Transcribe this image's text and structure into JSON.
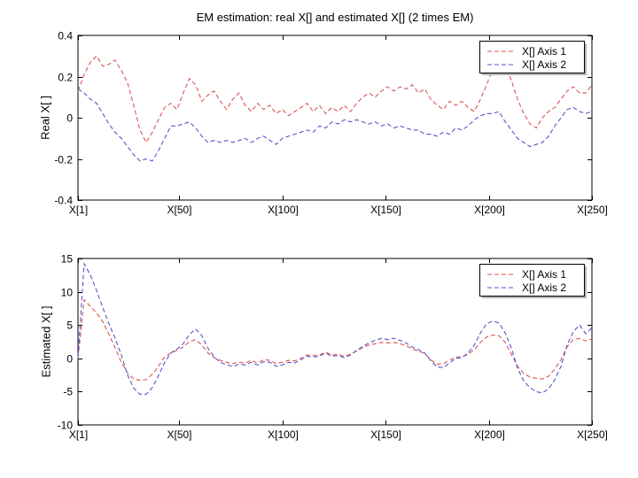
{
  "figure": {
    "title": "EM estimation: real X[] and estimated X[] (2 times EM)",
    "background": "#ffffff"
  },
  "chart_data": [
    {
      "type": "line",
      "title": "EM estimation: real X[] and estimated X[] (2 times EM)",
      "xlabel": "",
      "ylabel": "Real X[ ]",
      "grid": false,
      "xlim": [
        1,
        250
      ],
      "ylim": [
        -0.4,
        0.4
      ],
      "xticks": {
        "values": [
          1,
          50,
          100,
          150,
          200,
          250
        ],
        "labels": [
          "X[1]",
          "X[50]",
          "X[100]",
          "X[150]",
          "X[200]",
          "X[250]"
        ]
      },
      "yticks": {
        "values": [
          0.4,
          0.2,
          0,
          -0.2,
          -0.4
        ],
        "labels": [
          "0.4",
          "0.2",
          "0",
          "-0.2",
          "-0.4"
        ]
      },
      "legend": {
        "position": "top-right",
        "entries": [
          "X[] Axis 1",
          "X[] Axis 2"
        ]
      },
      "x": [
        1,
        4,
        7,
        10,
        13,
        16,
        19,
        22,
        25,
        28,
        31,
        34,
        37,
        40,
        43,
        46,
        49,
        52,
        55,
        58,
        61,
        64,
        67,
        70,
        73,
        76,
        79,
        82,
        85,
        88,
        91,
        94,
        97,
        100,
        103,
        106,
        109,
        112,
        115,
        118,
        121,
        124,
        127,
        130,
        133,
        136,
        139,
        142,
        145,
        148,
        151,
        154,
        157,
        160,
        163,
        166,
        169,
        172,
        175,
        178,
        181,
        184,
        187,
        190,
        193,
        196,
        199,
        202,
        205,
        208,
        211,
        214,
        217,
        220,
        223,
        226,
        229,
        232,
        235,
        238,
        241,
        244,
        247,
        250
      ],
      "series": [
        {
          "name": "X[] Axis 1",
          "color": "#dd5555",
          "style": "dashed",
          "values": [
            0.13,
            0.21,
            0.27,
            0.3,
            0.25,
            0.26,
            0.28,
            0.23,
            0.17,
            0.06,
            -0.06,
            -0.12,
            -0.07,
            -0.01,
            0.05,
            0.07,
            0.04,
            0.12,
            0.19,
            0.16,
            0.08,
            0.11,
            0.13,
            0.08,
            0.04,
            0.09,
            0.12,
            0.06,
            0.03,
            0.07,
            0.04,
            0.06,
            0.02,
            0.04,
            0.01,
            0.03,
            0.05,
            0.07,
            0.03,
            0.06,
            0.02,
            0.05,
            0.03,
            0.06,
            0.03,
            0.07,
            0.1,
            0.12,
            0.1,
            0.13,
            0.15,
            0.13,
            0.15,
            0.14,
            0.16,
            0.12,
            0.14,
            0.09,
            0.06,
            0.04,
            0.08,
            0.06,
            0.08,
            0.05,
            0.03,
            0.09,
            0.16,
            0.24,
            0.31,
            0.26,
            0.18,
            0.09,
            0.02,
            -0.03,
            -0.05,
            0.0,
            0.03,
            0.05,
            0.09,
            0.13,
            0.15,
            0.12,
            0.12,
            0.16
          ]
        },
        {
          "name": "X[] Axis 2",
          "color": "#5555cc",
          "style": "dashed",
          "values": [
            0.14,
            0.12,
            0.09,
            0.07,
            0.02,
            -0.03,
            -0.07,
            -0.1,
            -0.14,
            -0.18,
            -0.21,
            -0.2,
            -0.21,
            -0.16,
            -0.1,
            -0.04,
            -0.04,
            -0.03,
            -0.02,
            -0.05,
            -0.09,
            -0.12,
            -0.11,
            -0.12,
            -0.11,
            -0.12,
            -0.11,
            -0.1,
            -0.12,
            -0.1,
            -0.09,
            -0.11,
            -0.13,
            -0.1,
            -0.09,
            -0.08,
            -0.07,
            -0.06,
            -0.07,
            -0.04,
            -0.05,
            -0.02,
            -0.03,
            -0.01,
            -0.02,
            -0.01,
            -0.02,
            -0.03,
            -0.02,
            -0.04,
            -0.03,
            -0.05,
            -0.04,
            -0.05,
            -0.06,
            -0.06,
            -0.08,
            -0.08,
            -0.09,
            -0.07,
            -0.08,
            -0.05,
            -0.06,
            -0.04,
            -0.01,
            0.01,
            0.02,
            0.02,
            0.03,
            -0.02,
            -0.06,
            -0.1,
            -0.12,
            -0.14,
            -0.13,
            -0.12,
            -0.09,
            -0.04,
            0.0,
            0.04,
            0.05,
            0.03,
            0.02,
            0.03
          ]
        }
      ]
    },
    {
      "type": "line",
      "title": "",
      "xlabel": "",
      "ylabel": "Estimated X[ ]",
      "grid": false,
      "xlim": [
        1,
        250
      ],
      "ylim": [
        -10,
        15
      ],
      "xticks": {
        "values": [
          1,
          50,
          100,
          150,
          200,
          250
        ],
        "labels": [
          "X[1]",
          "X[50]",
          "X[100]",
          "X[150]",
          "X[200]",
          "X[250]"
        ]
      },
      "yticks": {
        "values": [
          15,
          10,
          5,
          0,
          -5,
          -10
        ],
        "labels": [
          "15",
          "10",
          "5",
          "0",
          "-5",
          "-10"
        ]
      },
      "legend": {
        "position": "top-right",
        "entries": [
          "X[] Axis 1",
          "X[] Axis 2"
        ]
      },
      "x": [
        1,
        4,
        7,
        10,
        13,
        16,
        19,
        22,
        25,
        28,
        31,
        34,
        37,
        40,
        43,
        46,
        49,
        52,
        55,
        58,
        61,
        64,
        67,
        70,
        73,
        76,
        79,
        82,
        85,
        88,
        91,
        94,
        97,
        100,
        103,
        106,
        109,
        112,
        115,
        118,
        121,
        124,
        127,
        130,
        133,
        136,
        139,
        142,
        145,
        148,
        151,
        154,
        157,
        160,
        163,
        166,
        169,
        172,
        175,
        178,
        181,
        184,
        187,
        190,
        193,
        196,
        199,
        202,
        205,
        208,
        211,
        214,
        217,
        220,
        223,
        226,
        229,
        232,
        235,
        238,
        241,
        244,
        247,
        250
      ],
      "series": [
        {
          "name": "X[] Axis 1",
          "color": "#dd5555",
          "style": "dashed",
          "values": [
            0.0,
            8.8,
            7.8,
            6.8,
            5.5,
            3.6,
            1.6,
            -0.6,
            -2.2,
            -3.1,
            -3.3,
            -3.2,
            -2.4,
            -1.2,
            0.2,
            0.8,
            1.2,
            1.7,
            2.5,
            2.8,
            2.0,
            0.8,
            0.1,
            -0.3,
            -0.6,
            -0.8,
            -0.6,
            -0.7,
            -0.3,
            -0.7,
            -0.2,
            -0.3,
            -0.8,
            -0.6,
            -0.3,
            -0.4,
            0.0,
            0.5,
            0.4,
            0.5,
            0.9,
            0.5,
            0.6,
            0.3,
            0.6,
            1.1,
            1.6,
            2.0,
            2.2,
            2.4,
            2.3,
            2.4,
            2.2,
            1.9,
            1.4,
            1.1,
            0.7,
            -0.2,
            -0.9,
            -0.8,
            -0.3,
            0.2,
            0.2,
            0.6,
            1.3,
            2.4,
            3.2,
            3.5,
            3.4,
            2.4,
            0.6,
            -1.2,
            -2.3,
            -2.8,
            -3.0,
            -3.1,
            -2.7,
            -1.6,
            -0.2,
            1.7,
            2.8,
            3.0,
            2.6,
            2.9
          ]
        },
        {
          "name": "X[] Axis 2",
          "color": "#5555cc",
          "style": "dashed",
          "values": [
            0.2,
            14.2,
            12.5,
            10.2,
            7.6,
            5.2,
            3.0,
            0.5,
            -2.5,
            -4.5,
            -5.4,
            -5.4,
            -4.4,
            -2.6,
            -0.6,
            0.8,
            1.4,
            2.2,
            3.6,
            4.4,
            3.4,
            1.5,
            0.2,
            -0.6,
            -1.0,
            -1.2,
            -0.9,
            -1.0,
            -0.6,
            -1.0,
            -0.5,
            -0.6,
            -1.2,
            -1.0,
            -0.6,
            -0.7,
            -0.2,
            0.3,
            0.2,
            0.3,
            0.8,
            0.3,
            0.4,
            0.1,
            0.5,
            1.2,
            1.8,
            2.3,
            2.7,
            3.0,
            2.8,
            3.0,
            2.7,
            2.3,
            1.7,
            1.3,
            0.8,
            -0.4,
            -1.3,
            -1.4,
            -0.7,
            0.0,
            0.1,
            0.8,
            2.0,
            3.8,
            5.2,
            5.6,
            5.3,
            3.8,
            1.5,
            -1.5,
            -3.4,
            -4.4,
            -5.0,
            -5.2,
            -4.6,
            -3.2,
            -1.2,
            2.0,
            4.0,
            5.0,
            3.7,
            4.6
          ]
        }
      ]
    }
  ]
}
